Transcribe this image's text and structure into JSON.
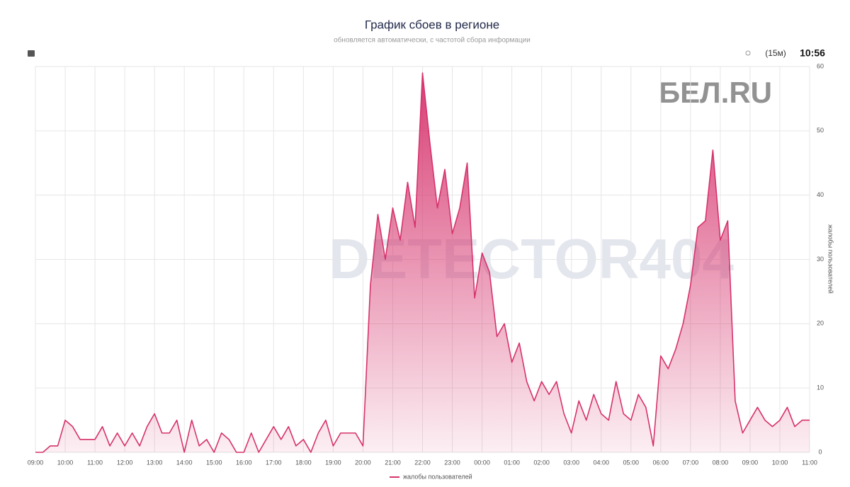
{
  "chart_data": {
    "type": "area",
    "title": "График сбоев в регионе",
    "subtitle": "обновляется автоматически, с частотой сбора информации",
    "interval": "(15м)",
    "time": "10:56",
    "watermarks": [
      "DETECTOR404",
      "БЕЛ.RU"
    ],
    "y_label": "жалобы пользователей",
    "categories": [
      "09:00",
      null,
      null,
      null,
      "10:00",
      null,
      null,
      null,
      "11:00",
      null,
      null,
      null,
      "12:00",
      null,
      null,
      null,
      "13:00",
      null,
      null,
      null,
      "14:00",
      null,
      null,
      null,
      "15:00",
      null,
      null,
      null,
      "16:00",
      null,
      null,
      null,
      "17:00",
      null,
      null,
      null,
      "18:00",
      null,
      null,
      null,
      "19:00",
      null,
      null,
      null,
      "20:00",
      null,
      null,
      null,
      "21:00",
      null,
      null,
      null,
      "22:00",
      null,
      null,
      null,
      "23:00",
      null,
      null,
      null,
      "00:00",
      null,
      null,
      null,
      "01:00",
      null,
      null,
      null,
      "02:00",
      null,
      null,
      null,
      "03:00",
      null,
      null,
      null,
      "04:00",
      null,
      null,
      null,
      "05:00",
      null,
      null,
      null,
      "06:00",
      null,
      null,
      null,
      "07:00",
      null,
      null,
      null,
      "08:00",
      null,
      null,
      null,
      "09:00",
      null,
      null,
      null,
      "10:00",
      null,
      null,
      null,
      "11:00"
    ],
    "series": [
      {
        "name": "жалобы пользователей",
        "color": "#d6336c",
        "values": [
          0,
          0,
          1,
          1,
          5,
          4,
          2,
          2,
          2,
          4,
          1,
          3,
          1,
          3,
          1,
          4,
          6,
          3,
          3,
          5,
          0,
          5,
          1,
          2,
          0,
          3,
          2,
          0,
          0,
          3,
          0,
          2,
          4,
          2,
          4,
          1,
          2,
          0,
          3,
          5,
          1,
          3,
          3,
          3,
          1,
          26,
          37,
          30,
          38,
          33,
          42,
          35,
          59,
          48,
          38,
          44,
          34,
          38,
          45,
          24,
          31,
          28,
          18,
          20,
          14,
          17,
          11,
          8,
          11,
          9,
          11,
          6,
          3,
          8,
          5,
          9,
          6,
          5,
          11,
          6,
          5,
          9,
          7,
          1,
          15,
          13,
          16,
          20,
          26,
          35,
          36,
          47,
          33,
          36,
          8,
          3,
          5,
          7,
          5,
          4,
          5,
          7,
          4,
          5,
          5
        ]
      }
    ],
    "ylim": [
      0,
      60
    ],
    "yticks": [
      0,
      10,
      20,
      30,
      40,
      50,
      60
    ],
    "grid": true
  }
}
